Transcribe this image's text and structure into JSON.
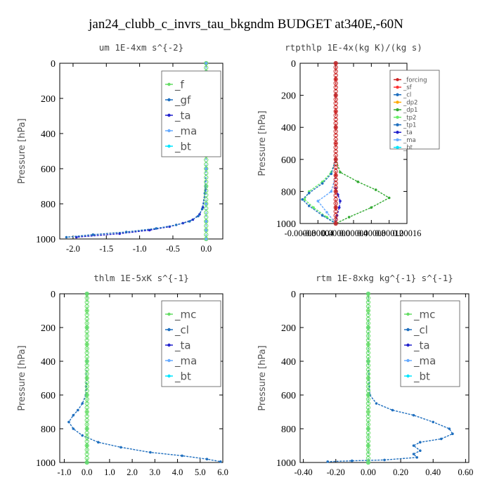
{
  "figure_title": "jan24_clubb_c_invrs_tau_bkgndm  BUDGET at340E,-60N",
  "chart_data": [
    {
      "type": "line",
      "title": "um  1E-4xm s^{-2}",
      "ylabel": "Pressure [hPa]",
      "xlim": [
        -2.2,
        0.25
      ],
      "ylim": [
        1000,
        0
      ],
      "xticks": [
        "-2.0",
        "-1.5",
        "-1.0",
        "-0.5",
        "0.0"
      ],
      "xtick_values": [
        -2.0,
        -1.5,
        -1.0,
        -0.5,
        0.0
      ],
      "yticks": [
        "0",
        "200",
        "400",
        "600",
        "800",
        "1000"
      ],
      "legend": [
        "_f",
        "_gf",
        "_ta",
        "_ma",
        "_bt"
      ],
      "series": [
        {
          "name": "_bt",
          "color": "#00e5ff",
          "x": [
            0,
            0,
            0,
            0,
            0,
            0,
            0,
            0,
            0,
            0,
            0
          ],
          "y": [
            0,
            100,
            200,
            300,
            400,
            500,
            600,
            700,
            800,
            900,
            1000
          ]
        },
        {
          "name": "_f",
          "color": "#66dd66",
          "x": [
            0,
            0,
            0,
            0,
            0,
            0,
            0,
            0,
            0,
            0,
            0
          ],
          "y": [
            0,
            100,
            200,
            300,
            400,
            500,
            600,
            700,
            800,
            900,
            1000
          ]
        },
        {
          "name": "_ta",
          "color": "#2222cc",
          "x": [
            0,
            0,
            0,
            0,
            -0.01,
            -0.05,
            -0.1,
            -0.2,
            -0.35,
            -0.55,
            -0.85,
            -1.3,
            -1.95
          ],
          "y": [
            0,
            200,
            400,
            600,
            720,
            820,
            860,
            890,
            910,
            930,
            950,
            970,
            990
          ]
        },
        {
          "name": "_gf",
          "color": "#1f6fbf",
          "x": [
            0,
            0,
            0,
            0,
            -0.02,
            -0.06,
            -0.12,
            -0.25,
            -0.45,
            -0.75,
            -1.2,
            -1.7,
            -2.1
          ],
          "y": [
            0,
            200,
            400,
            600,
            740,
            830,
            870,
            900,
            920,
            940,
            960,
            975,
            990
          ]
        },
        {
          "name": "_ma",
          "color": "#66aaff",
          "x": [
            0,
            0,
            0,
            0,
            0,
            0,
            0,
            0
          ],
          "y": [
            0,
            200,
            400,
            600,
            800,
            900,
            950,
            1000
          ]
        }
      ]
    },
    {
      "type": "line",
      "title": "rtpthlp  1E-4x(kg K)/(kg s)",
      "ylabel": "Pressure [hPa]",
      "xlim": [
        -8e-05,
        0.00016
      ],
      "ylim": [
        1000,
        0
      ],
      "xticks": [
        "-0.00008",
        "-0.00004",
        "0.00000",
        "0.00004",
        "0.00008",
        "0.00012",
        "0.00016"
      ],
      "xtick_values": [
        -8e-05,
        -4e-05,
        0.0,
        4e-05,
        8e-05,
        0.00012,
        0.00016
      ],
      "yticks": [
        "0",
        "200",
        "400",
        "600",
        "800",
        "1000"
      ],
      "legend": [
        "_forcing",
        "_sf",
        "_cl",
        "_dp2",
        "_dp1",
        "_tp2",
        "_tp1",
        "_ta",
        "_ma",
        "_bt"
      ],
      "series": [
        {
          "name": "_dp1",
          "color": "#33aa33",
          "x": [
            0,
            0,
            0,
            0,
            1e-05,
            5e-05,
            9e-05,
            0.00012,
            8e-05,
            3e-05,
            0
          ],
          "y": [
            0,
            200,
            400,
            600,
            680,
            740,
            790,
            840,
            900,
            960,
            1000
          ]
        },
        {
          "name": "_tp2",
          "color": "#66ee66",
          "x": [
            0,
            0,
            0,
            0,
            -1e-05,
            -3e-05,
            -6e-05,
            -7e-05,
            -5e-05,
            -2e-05,
            0
          ],
          "y": [
            0,
            200,
            400,
            600,
            680,
            740,
            800,
            850,
            900,
            960,
            1000
          ]
        },
        {
          "name": "_tp1",
          "color": "#1f6fbf",
          "x": [
            0,
            0,
            0,
            0,
            -1e-05,
            -3e-05,
            -6e-05,
            -7.5e-05,
            -6e-05,
            -3e-05,
            0
          ],
          "y": [
            0,
            200,
            400,
            600,
            690,
            750,
            810,
            850,
            890,
            950,
            1000
          ]
        },
        {
          "name": "_ta",
          "color": "#2222cc",
          "x": [
            0,
            0,
            0,
            0,
            0,
            5e-06,
            1e-05,
            8e-06,
            3e-06,
            0
          ],
          "y": [
            0,
            200,
            400,
            600,
            780,
            820,
            860,
            900,
            950,
            1000
          ]
        },
        {
          "name": "_ma",
          "color": "#66aaff",
          "x": [
            0,
            0,
            0,
            0,
            -1e-05,
            -4e-05,
            -2e-05,
            0
          ],
          "y": [
            0,
            200,
            400,
            700,
            800,
            860,
            930,
            1000
          ]
        },
        {
          "name": "_bt",
          "color": "#00e5ff",
          "x": [
            0,
            0,
            0,
            0,
            0,
            0,
            0
          ],
          "y": [
            0,
            200,
            400,
            600,
            800,
            900,
            1000
          ]
        },
        {
          "name": "_forcing",
          "color": "#cc2222",
          "x": [
            0,
            0,
            0,
            0,
            0,
            0,
            0,
            0,
            0,
            0,
            0
          ],
          "y": [
            0,
            100,
            200,
            300,
            400,
            500,
            600,
            700,
            800,
            900,
            1000
          ]
        }
      ]
    },
    {
      "type": "line",
      "title": "thlm  1E-5xK s^{-1}",
      "ylabel": "Pressure [hPa]",
      "xlim": [
        -1.2,
        6.0
      ],
      "ylim": [
        1000,
        0
      ],
      "xticks": [
        "-1.0",
        "0.0",
        "1.0",
        "2.0",
        "3.0",
        "4.0",
        "5.0",
        "6.0"
      ],
      "xtick_values": [
        -1.0,
        0.0,
        1.0,
        2.0,
        3.0,
        4.0,
        5.0,
        6.0
      ],
      "yticks": [
        "0",
        "200",
        "400",
        "600",
        "800",
        "1000"
      ],
      "legend": [
        "_mc",
        "_cl",
        "_ta",
        "_ma",
        "_bt"
      ],
      "series": [
        {
          "name": "_cl",
          "color": "#1f6fbf",
          "x": [
            0,
            0,
            0,
            -0.05,
            -0.2,
            -0.4,
            -0.6,
            -0.8,
            -0.6,
            -0.2,
            0.5,
            1.5,
            2.8,
            4.2,
            5.3,
            5.9
          ],
          "y": [
            0,
            200,
            400,
            600,
            650,
            690,
            720,
            760,
            800,
            840,
            880,
            910,
            940,
            960,
            980,
            995
          ]
        },
        {
          "name": "_ta",
          "color": "#2222cc",
          "x": [
            0,
            0,
            0,
            0,
            0,
            0
          ],
          "y": [
            0,
            200,
            400,
            600,
            800,
            1000
          ]
        },
        {
          "name": "_bt",
          "color": "#00e5ff",
          "x": [
            0,
            0,
            0,
            0,
            0,
            0,
            0
          ],
          "y": [
            0,
            200,
            400,
            600,
            800,
            900,
            1000
          ]
        },
        {
          "name": "_mc",
          "color": "#66dd66",
          "x": [
            0,
            0,
            0,
            0,
            0,
            0,
            0,
            0,
            0,
            0,
            0
          ],
          "y": [
            0,
            100,
            200,
            300,
            400,
            500,
            600,
            700,
            800,
            900,
            1000
          ]
        }
      ]
    },
    {
      "type": "line",
      "title": "rtm  1E-8xkg kg^{-1} s^{-1}",
      "ylabel": "Pressure [hPa]",
      "xlim": [
        -0.42,
        0.62
      ],
      "ylim": [
        1000,
        0
      ],
      "xticks": [
        "-0.40",
        "-0.20",
        "0.00",
        "0.20",
        "0.40",
        "0.60"
      ],
      "xtick_values": [
        -0.4,
        -0.2,
        0.0,
        0.2,
        0.4,
        0.6
      ],
      "yticks": [
        "0",
        "200",
        "400",
        "600",
        "800",
        "1000"
      ],
      "legend": [
        "_mc",
        "_cl",
        "_ta",
        "_ma",
        "_bt"
      ],
      "series": [
        {
          "name": "_cl",
          "color": "#1f6fbf",
          "x": [
            0,
            0,
            0,
            0.01,
            0.05,
            0.15,
            0.28,
            0.4,
            0.5,
            0.52,
            0.45,
            0.32,
            0.28,
            0.32,
            0.28,
            0.3,
            0.1,
            -0.1,
            -0.25
          ],
          "y": [
            0,
            200,
            400,
            600,
            650,
            690,
            720,
            760,
            800,
            830,
            860,
            880,
            900,
            930,
            950,
            970,
            985,
            990,
            995
          ]
        },
        {
          "name": "_ta",
          "color": "#2222cc",
          "x": [
            0,
            0,
            0,
            0,
            0,
            0
          ],
          "y": [
            0,
            200,
            400,
            600,
            800,
            1000
          ]
        },
        {
          "name": "_bt",
          "color": "#00e5ff",
          "x": [
            0,
            0,
            0,
            0,
            0,
            0,
            0
          ],
          "y": [
            0,
            200,
            400,
            600,
            800,
            900,
            1000
          ]
        },
        {
          "name": "_mc",
          "color": "#66dd66",
          "x": [
            0,
            0,
            0,
            0,
            0,
            0,
            0,
            0,
            0,
            0,
            0
          ],
          "y": [
            0,
            100,
            200,
            300,
            400,
            500,
            600,
            700,
            800,
            900,
            1000
          ]
        }
      ]
    }
  ]
}
